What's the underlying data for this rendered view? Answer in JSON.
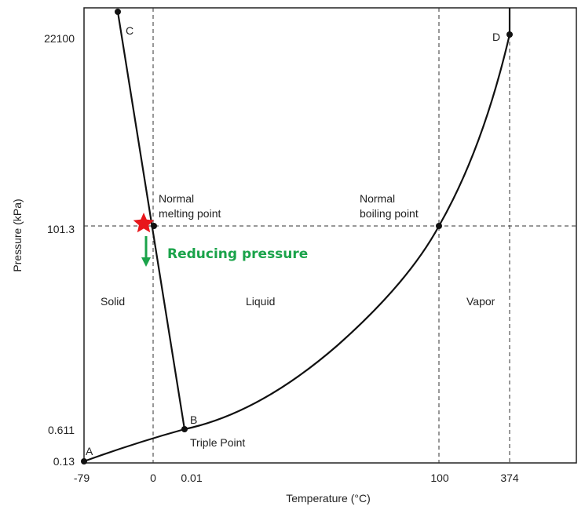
{
  "chart_data": {
    "type": "line",
    "title": "",
    "xlabel": "Temperature (°C)",
    "ylabel": "Pressure (kPa)",
    "x_ticks": [
      "-79",
      "0",
      "0.01",
      "100",
      "374"
    ],
    "y_ticks": [
      "0.13",
      "0.611",
      "101.3",
      "22100"
    ],
    "point_labels": {
      "A": "A",
      "B": "B",
      "C": "C",
      "D": "D"
    },
    "annotations": {
      "normal_melting_1": "Normal",
      "normal_melting_2": "melting point",
      "normal_boiling_1": "Normal",
      "normal_boiling_2": "boiling point",
      "triple_point": "Triple Point",
      "solid": "Solid",
      "liquid": "Liquid",
      "vapor": "Vapor",
      "reducing_pressure": "Reducing pressure"
    },
    "series": [
      {
        "points": [
          {
            "x": -79,
            "y": 0.13
          },
          {
            "x": 0.01,
            "y": 0.611
          },
          {
            "x": 100,
            "y": 101.3
          },
          {
            "x": 374,
            "y": 22100
          }
        ]
      },
      {
        "points": [
          {
            "x": 0.01,
            "y": 0.611
          },
          {
            "x": 0,
            "y": 101.3
          },
          {
            "x": -0.5,
            "y": 22100
          }
        ]
      }
    ],
    "colors": {
      "star": "#e8161b",
      "callout": "#1aa34a",
      "line": "#111111"
    }
  }
}
